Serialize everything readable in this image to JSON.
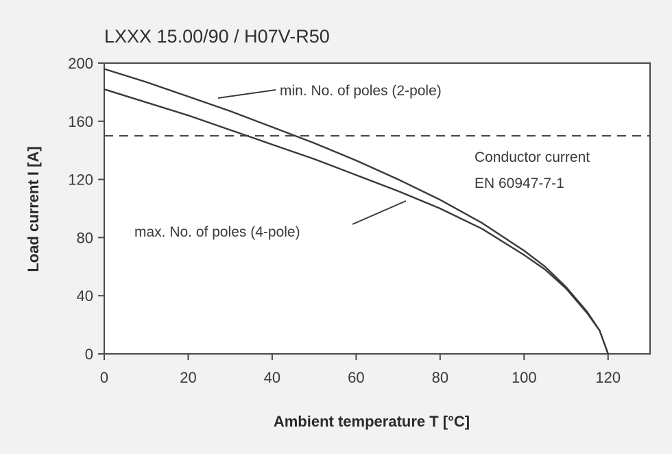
{
  "chart_data": {
    "type": "line",
    "title": "LXXX 15.00/90 / H07V-R50",
    "xlabel": "Ambient temperature T [°C]",
    "ylabel": "Load current I [A]",
    "xlim": [
      0,
      130
    ],
    "ylim": [
      0,
      200
    ],
    "x_ticks": [
      "0",
      "20",
      "40",
      "60",
      "80",
      "100",
      "120"
    ],
    "y_ticks": [
      "0",
      "40",
      "80",
      "120",
      "160",
      "200"
    ],
    "grid": false,
    "series": [
      {
        "name": "min. No. of poles (2-pole)",
        "x": [
          0,
          10,
          20,
          30,
          40,
          50,
          60,
          70,
          80,
          90,
          100,
          105,
          110,
          115,
          118,
          120
        ],
        "y": [
          196,
          187,
          177,
          167,
          156,
          145,
          133,
          120,
          106,
          90,
          71,
          60,
          46,
          29,
          16,
          0
        ]
      },
      {
        "name": "max. No. of poles (4-pole)",
        "x": [
          0,
          10,
          20,
          30,
          40,
          50,
          60,
          70,
          80,
          90,
          100,
          105,
          110,
          115,
          118,
          120
        ],
        "y": [
          182,
          173,
          164,
          154,
          144,
          134,
          123,
          112,
          100,
          86,
          68,
          58,
          45,
          28,
          16,
          0
        ]
      }
    ],
    "reference_lines": [
      {
        "label_lines": [
          "Conductor current",
          "EN 60947-7-1"
        ],
        "y": 150,
        "style": "dashed"
      }
    ],
    "annotations": [
      {
        "text": "min. No. of poles (2-pole)"
      },
      {
        "text": "max. No. of poles (4-pole)"
      }
    ]
  }
}
